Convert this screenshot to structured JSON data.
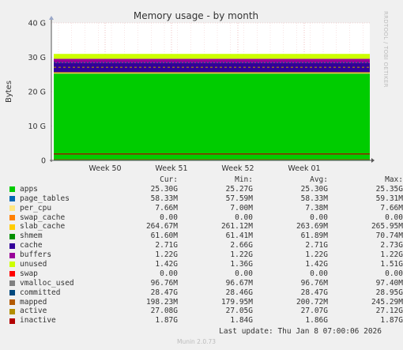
{
  "chart_data": {
    "type": "area",
    "title": "Memory usage - by month",
    "ylabel": "Bytes",
    "ylim": [
      0,
      40
    ],
    "y_unit": "G",
    "yticks": [
      0,
      10,
      20,
      30,
      40
    ],
    "ytick_labels": [
      "0",
      "10 G",
      "20 G",
      "30 G",
      "40 G"
    ],
    "xticks": [
      "Week 50",
      "Week 51",
      "Week 52",
      "Week 01"
    ],
    "grid": true,
    "legend_placement": "bottom",
    "stack_order": [
      "apps",
      "page_tables",
      "per_cpu",
      "swap_cache",
      "slab_cache",
      "cache",
      "buffers",
      "unused",
      "swap"
    ],
    "series": [
      {
        "name": "apps",
        "color": "#00cc00",
        "cur": "25.30G",
        "min": "25.27G",
        "avg": "25.30G",
        "max": "25.35G",
        "value_g": 25.3
      },
      {
        "name": "page_tables",
        "color": "#0066b3",
        "cur": "58.33M",
        "min": "57.59M",
        "avg": "58.33M",
        "max": "59.31M",
        "value_g": 0.058
      },
      {
        "name": "per_cpu",
        "color": "#ffe680",
        "cur": "7.66M",
        "min": "7.00M",
        "avg": "7.38M",
        "max": "7.66M",
        "value_g": 0.0077
      },
      {
        "name": "swap_cache",
        "color": "#ff8000",
        "cur": "0.00",
        "min": "0.00",
        "avg": "0.00",
        "max": "0.00",
        "value_g": 0
      },
      {
        "name": "slab_cache",
        "color": "#ffcc00",
        "cur": "264.67M",
        "min": "261.12M",
        "avg": "263.69M",
        "max": "265.95M",
        "value_g": 0.265
      },
      {
        "name": "shmem",
        "color": "#008f00",
        "cur": "61.60M",
        "min": "61.41M",
        "avg": "61.89M",
        "max": "70.74M",
        "value_g": 0.062
      },
      {
        "name": "cache",
        "color": "#330099",
        "cur": "2.71G",
        "min": "2.66G",
        "avg": "2.71G",
        "max": "2.73G",
        "value_g": 2.71
      },
      {
        "name": "buffers",
        "color": "#990099",
        "cur": "1.22G",
        "min": "1.22G",
        "avg": "1.22G",
        "max": "1.22G",
        "value_g": 1.22
      },
      {
        "name": "unused",
        "color": "#ccff00",
        "cur": "1.42G",
        "min": "1.36G",
        "avg": "1.42G",
        "max": "1.51G",
        "value_g": 1.42
      },
      {
        "name": "swap",
        "color": "#ff0000",
        "cur": "0.00",
        "min": "0.00",
        "avg": "0.00",
        "max": "0.00",
        "value_g": 0
      },
      {
        "name": "vmalloc_used",
        "color": "#808080",
        "cur": "96.76M",
        "min": "96.67M",
        "avg": "96.76M",
        "max": "97.40M",
        "value_g": 0.097
      },
      {
        "name": "committed",
        "color": "#00487d",
        "cur": "28.47G",
        "min": "28.46G",
        "avg": "28.47G",
        "max": "28.95G",
        "value_g": 28.47
      },
      {
        "name": "mapped",
        "color": "#b35a00",
        "cur": "198.23M",
        "min": "179.95M",
        "avg": "200.72M",
        "max": "245.29M",
        "value_g": 0.198
      },
      {
        "name": "active",
        "color": "#b38f00",
        "cur": "27.08G",
        "min": "27.05G",
        "avg": "27.07G",
        "max": "27.12G",
        "value_g": 27.08
      },
      {
        "name": "inactive",
        "color": "#b30000",
        "cur": "1.87G",
        "min": "1.84G",
        "avg": "1.86G",
        "max": "1.87G",
        "value_g": 1.87
      }
    ]
  },
  "legend_headers": {
    "cur": "Cur:",
    "min": "Min:",
    "avg": "Avg:",
    "max": "Max:"
  },
  "last_update": "Last update: Thu Jan  8 07:00:06 2026",
  "munin_version": "Munin 2.0.73",
  "side_label": "RRDTOOL / TOBI OETIKER"
}
